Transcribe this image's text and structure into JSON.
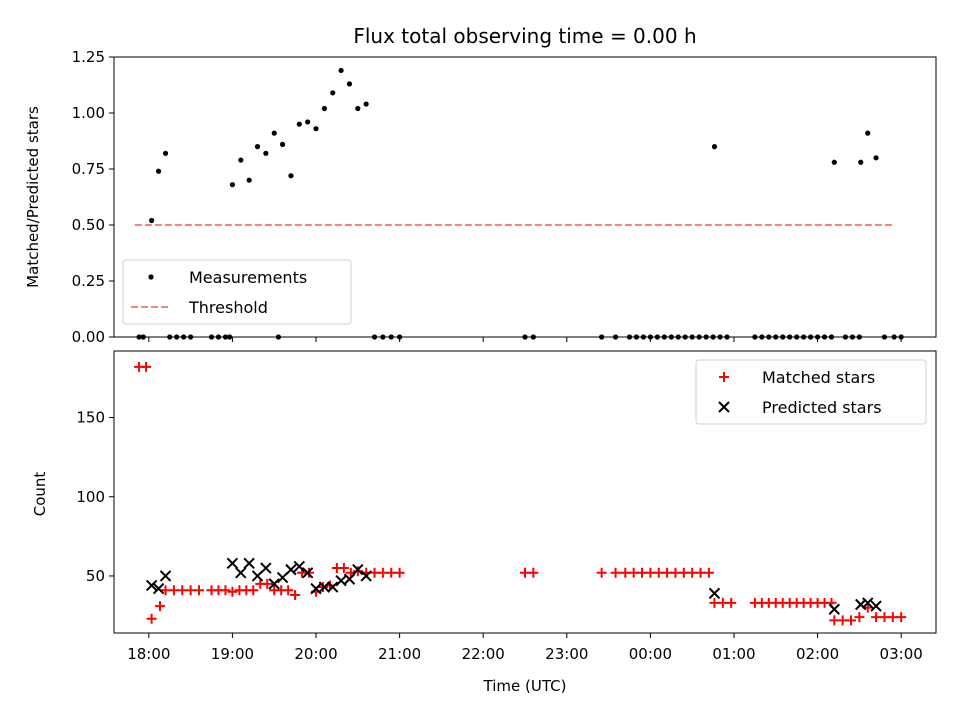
{
  "chart_data": [
    {
      "type": "scatter",
      "title": "Flux total observing time = 0.00 h",
      "xlabel": "",
      "ylabel": "Matched/Predicted stars",
      "xlim": [
        "17:35",
        "27:25"
      ],
      "ylim": [
        0,
        1.25
      ],
      "yticks": [
        0.0,
        0.25,
        0.5,
        0.75,
        1.0,
        1.25
      ],
      "ytick_labels": [
        "0.00",
        "0.25",
        "0.50",
        "0.75",
        "1.00",
        "1.25"
      ],
      "legend": "lower-left",
      "series": [
        {
          "name": "Measurements",
          "color": "#000000",
          "marker": "dot",
          "points": [
            [
              "17:53",
              0
            ],
            [
              "17:56",
              0
            ],
            [
              "18:02",
              0.52
            ],
            [
              "18:07",
              0.74
            ],
            [
              "18:12",
              0.82
            ],
            [
              "18:15",
              0
            ],
            [
              "18:20",
              0
            ],
            [
              "18:25",
              0
            ],
            [
              "18:30",
              0
            ],
            [
              "18:45",
              0
            ],
            [
              "18:50",
              0
            ],
            [
              "18:55",
              0
            ],
            [
              "18:58",
              0
            ],
            [
              "19:00",
              0.68
            ],
            [
              "19:06",
              0.79
            ],
            [
              "19:12",
              0.7
            ],
            [
              "19:18",
              0.85
            ],
            [
              "19:24",
              0.82
            ],
            [
              "19:30",
              0.91
            ],
            [
              "19:33",
              0
            ],
            [
              "19:36",
              0.86
            ],
            [
              "19:42",
              0.72
            ],
            [
              "19:48",
              0.95
            ],
            [
              "19:54",
              0.96
            ],
            [
              "20:00",
              0.93
            ],
            [
              "20:06",
              1.02
            ],
            [
              "20:12",
              1.09
            ],
            [
              "20:18",
              1.19
            ],
            [
              "20:24",
              1.13
            ],
            [
              "20:30",
              1.02
            ],
            [
              "20:36",
              1.04
            ],
            [
              "20:42",
              0
            ],
            [
              "20:48",
              0
            ],
            [
              "20:54",
              0
            ],
            [
              "21:00",
              0
            ],
            [
              "22:30",
              0
            ],
            [
              "22:36",
              0
            ],
            [
              "23:25",
              0
            ],
            [
              "23:35",
              0
            ],
            [
              "23:45",
              0
            ],
            [
              "23:50",
              0
            ],
            [
              "23:55",
              0
            ],
            [
              "24:00",
              0
            ],
            [
              "24:05",
              0
            ],
            [
              "24:10",
              0
            ],
            [
              "24:15",
              0
            ],
            [
              "24:20",
              0
            ],
            [
              "24:25",
              0
            ],
            [
              "24:30",
              0
            ],
            [
              "24:35",
              0
            ],
            [
              "24:40",
              0
            ],
            [
              "24:45",
              0
            ],
            [
              "24:46",
              0.85
            ],
            [
              "24:50",
              0
            ],
            [
              "24:55",
              0
            ],
            [
              "25:15",
              0
            ],
            [
              "25:20",
              0
            ],
            [
              "25:25",
              0
            ],
            [
              "25:30",
              0
            ],
            [
              "25:35",
              0
            ],
            [
              "25:40",
              0
            ],
            [
              "25:45",
              0
            ],
            [
              "25:50",
              0
            ],
            [
              "25:55",
              0
            ],
            [
              "26:00",
              0
            ],
            [
              "26:05",
              0
            ],
            [
              "26:10",
              0
            ],
            [
              "26:12",
              0.78
            ],
            [
              "26:20",
              0
            ],
            [
              "26:25",
              0
            ],
            [
              "26:30",
              0
            ],
            [
              "26:31",
              0.78
            ],
            [
              "26:36",
              0.91
            ],
            [
              "26:42",
              0.8
            ],
            [
              "26:48",
              0
            ],
            [
              "26:55",
              0
            ],
            [
              "27:00",
              0
            ]
          ]
        },
        {
          "name": "Threshold",
          "color": "#ff7f7f",
          "marker": "dashed-line",
          "points": [
            [
              "17:50",
              0.5
            ],
            [
              "26:55",
              0.5
            ]
          ]
        }
      ]
    },
    {
      "type": "scatter",
      "title": "",
      "xlabel": "Time (UTC)",
      "ylabel": "Count",
      "xlim": [
        "17:35",
        "27:25"
      ],
      "ylim": [
        14,
        192
      ],
      "xticks": [
        "18:00",
        "19:00",
        "20:00",
        "21:00",
        "22:00",
        "23:00",
        "24:00",
        "25:00",
        "26:00",
        "27:00"
      ],
      "xtick_labels": [
        "18:00",
        "19:00",
        "20:00",
        "21:00",
        "22:00",
        "23:00",
        "00:00",
        "01:00",
        "02:00",
        "03:00"
      ],
      "yticks": [
        50,
        100,
        150
      ],
      "ytick_labels": [
        "50",
        "100",
        "150"
      ],
      "legend": "top-right",
      "series": [
        {
          "name": "Matched stars",
          "color": "#ff0000",
          "marker": "plus",
          "points": [
            [
              "17:53",
              182
            ],
            [
              "17:58",
              182
            ],
            [
              "18:02",
              23
            ],
            [
              "18:08",
              31
            ],
            [
              "18:12",
              41
            ],
            [
              "18:18",
              41
            ],
            [
              "18:24",
              41
            ],
            [
              "18:30",
              41
            ],
            [
              "18:36",
              41
            ],
            [
              "18:45",
              41
            ],
            [
              "18:50",
              41
            ],
            [
              "18:55",
              41
            ],
            [
              "19:00",
              40
            ],
            [
              "19:05",
              41
            ],
            [
              "19:10",
              41
            ],
            [
              "19:15",
              41
            ],
            [
              "19:20",
              45
            ],
            [
              "19:25",
              45
            ],
            [
              "19:30",
              41
            ],
            [
              "19:35",
              41
            ],
            [
              "19:40",
              41
            ],
            [
              "19:45",
              38
            ],
            [
              "19:50",
              52
            ],
            [
              "19:55",
              52
            ],
            [
              "20:00",
              40
            ],
            [
              "20:05",
              43
            ],
            [
              "20:10",
              44
            ],
            [
              "20:15",
              55
            ],
            [
              "20:20",
              55
            ],
            [
              "20:25",
              52
            ],
            [
              "20:30",
              53
            ],
            [
              "20:36",
              52
            ],
            [
              "20:42",
              52
            ],
            [
              "20:48",
              52
            ],
            [
              "20:54",
              52
            ],
            [
              "21:00",
              52
            ],
            [
              "22:30",
              52
            ],
            [
              "22:36",
              52
            ],
            [
              "23:25",
              52
            ],
            [
              "23:35",
              52
            ],
            [
              "23:42",
              52
            ],
            [
              "23:48",
              52
            ],
            [
              "23:54",
              52
            ],
            [
              "24:00",
              52
            ],
            [
              "24:06",
              52
            ],
            [
              "24:12",
              52
            ],
            [
              "24:18",
              52
            ],
            [
              "24:24",
              52
            ],
            [
              "24:30",
              52
            ],
            [
              "24:36",
              52
            ],
            [
              "24:42",
              52
            ],
            [
              "24:46",
              33
            ],
            [
              "24:52",
              33
            ],
            [
              "24:58",
              33
            ],
            [
              "25:15",
              33
            ],
            [
              "25:20",
              33
            ],
            [
              "25:25",
              33
            ],
            [
              "25:30",
              33
            ],
            [
              "25:35",
              33
            ],
            [
              "25:40",
              33
            ],
            [
              "25:45",
              33
            ],
            [
              "25:50",
              33
            ],
            [
              "25:55",
              33
            ],
            [
              "26:00",
              33
            ],
            [
              "26:05",
              33
            ],
            [
              "26:10",
              33
            ],
            [
              "26:12",
              22
            ],
            [
              "26:18",
              22
            ],
            [
              "26:24",
              22
            ],
            [
              "26:30",
              24
            ],
            [
              "26:36",
              30
            ],
            [
              "26:42",
              24
            ],
            [
              "26:48",
              24
            ],
            [
              "26:54",
              24
            ],
            [
              "27:00",
              24
            ]
          ]
        },
        {
          "name": "Predicted stars",
          "color": "#000000",
          "marker": "x",
          "points": [
            [
              "18:02",
              44
            ],
            [
              "18:07",
              42
            ],
            [
              "18:12",
              50
            ],
            [
              "19:00",
              58
            ],
            [
              "19:06",
              52
            ],
            [
              "19:12",
              58
            ],
            [
              "19:18",
              50
            ],
            [
              "19:24",
              55
            ],
            [
              "19:30",
              45
            ],
            [
              "19:36",
              49
            ],
            [
              "19:42",
              54
            ],
            [
              "19:48",
              56
            ],
            [
              "19:54",
              52
            ],
            [
              "20:00",
              42
            ],
            [
              "20:06",
              43
            ],
            [
              "20:12",
              43
            ],
            [
              "20:18",
              47
            ],
            [
              "20:24",
              48
            ],
            [
              "20:30",
              54
            ],
            [
              "20:36",
              50
            ],
            [
              "24:46",
              39
            ],
            [
              "26:12",
              29
            ],
            [
              "26:31",
              32
            ],
            [
              "26:36",
              33
            ],
            [
              "26:42",
              31
            ]
          ]
        }
      ]
    }
  ]
}
